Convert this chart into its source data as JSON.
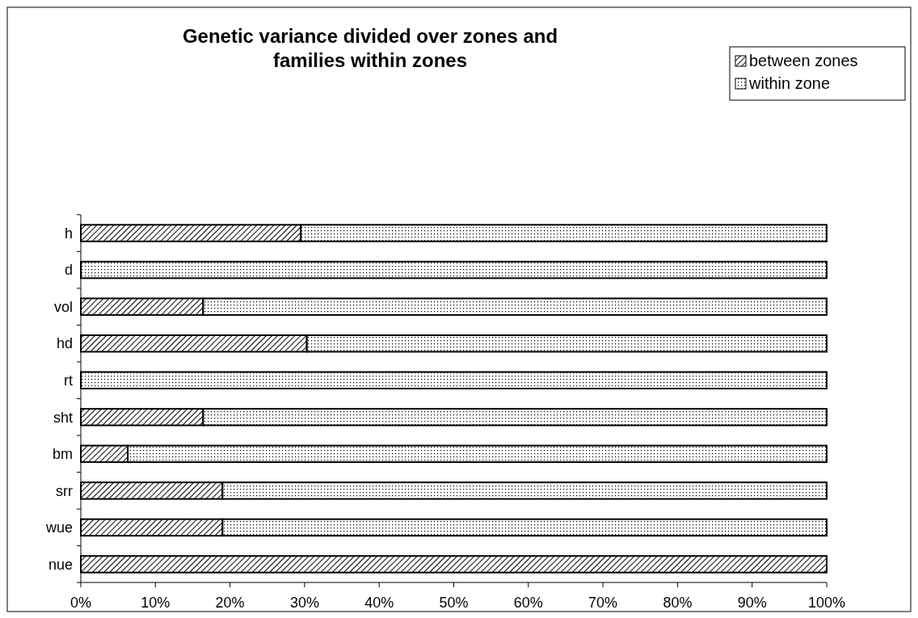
{
  "chart_data": {
    "type": "bar",
    "orientation": "horizontal",
    "stacked": true,
    "title": "Genetic variance divided over zones and families within zones",
    "categories": [
      "h",
      "d",
      "vol",
      "hd",
      "rt",
      "sht",
      "bm",
      "srr",
      "wue",
      "nue"
    ],
    "series": [
      {
        "name": "between zones",
        "color": "#000000",
        "values": [
          29.5,
          0,
          16.4,
          30.3,
          0,
          16.4,
          6.3,
          19,
          19,
          100
        ]
      },
      {
        "name": "within zone",
        "color": "#000000",
        "values": [
          70.5,
          100,
          83.6,
          69.7,
          100,
          83.6,
          93.7,
          81,
          81,
          0
        ]
      }
    ],
    "xlim": [
      0,
      100
    ],
    "xticks": [
      {
        "value": 0,
        "label": "0%"
      },
      {
        "value": 10,
        "label": "10%"
      },
      {
        "value": 20,
        "label": "20%"
      },
      {
        "value": 30,
        "label": "30%"
      },
      {
        "value": 40,
        "label": "40%"
      },
      {
        "value": 50,
        "label": "50%"
      },
      {
        "value": 60,
        "label": "60%"
      },
      {
        "value": 70,
        "label": "70%"
      },
      {
        "value": 80,
        "label": "80%"
      },
      {
        "value": 90,
        "label": "90%"
      },
      {
        "value": 100,
        "label": "100%"
      }
    ],
    "legend": "top right",
    "grid": false
  }
}
